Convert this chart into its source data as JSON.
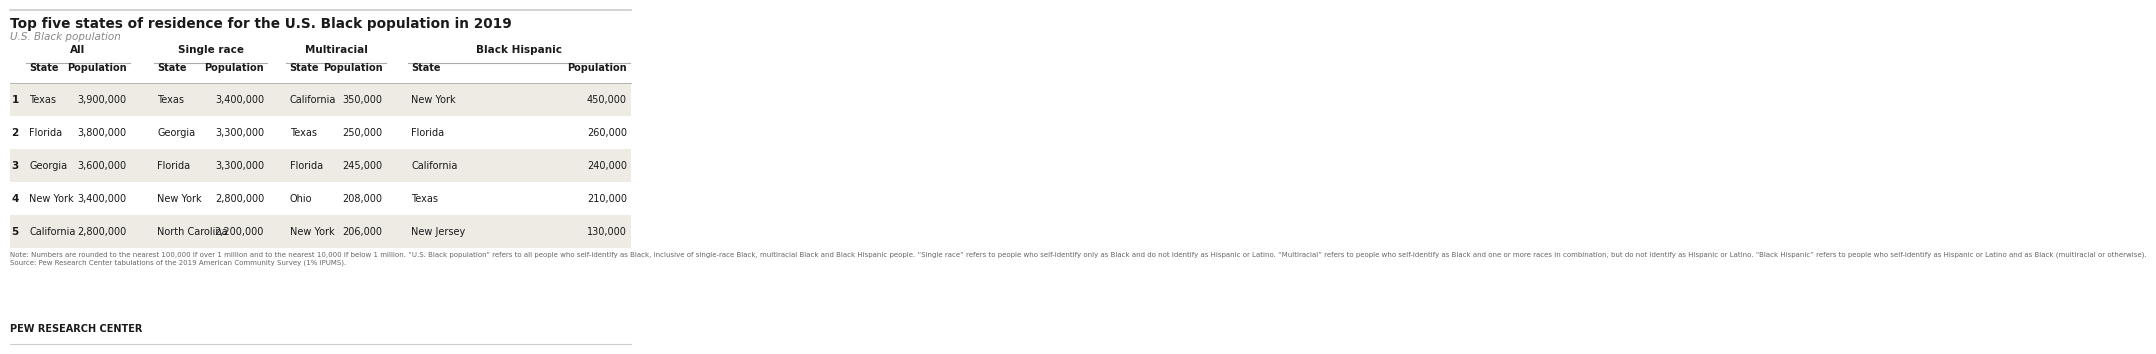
{
  "title": "Top five states of residence for the U.S. Black population in 2019",
  "subtitle": "U.S. Black population",
  "ranks": [
    "1",
    "2",
    "3",
    "4",
    "5"
  ],
  "all_data": [
    [
      "Texas",
      "3,900,000"
    ],
    [
      "Florida",
      "3,800,000"
    ],
    [
      "Georgia",
      "3,600,000"
    ],
    [
      "New York",
      "3,400,000"
    ],
    [
      "California",
      "2,800,000"
    ]
  ],
  "single_race_data": [
    [
      "Texas",
      "3,400,000"
    ],
    [
      "Georgia",
      "3,300,000"
    ],
    [
      "Florida",
      "3,300,000"
    ],
    [
      "New York",
      "2,800,000"
    ],
    [
      "North Carolina",
      "2,200,000"
    ]
  ],
  "multiracial_data": [
    [
      "California",
      "350,000"
    ],
    [
      "Texas",
      "250,000"
    ],
    [
      "Florida",
      "245,000"
    ],
    [
      "Ohio",
      "208,000"
    ],
    [
      "New York",
      "206,000"
    ]
  ],
  "black_hispanic_data": [
    [
      "New York",
      "450,000"
    ],
    [
      "Florida",
      "260,000"
    ],
    [
      "California",
      "240,000"
    ],
    [
      "Texas",
      "210,000"
    ],
    [
      "New Jersey",
      "130,000"
    ]
  ],
  "note": "Note: Numbers are rounded to the nearest 100,000 if over 1 million and to the nearest 10,000 if below 1 million. “U.S. Black population” refers to all people who self-identify as Black, inclusive of single-race Black, multiracial Black and Black Hispanic people. “Single race” refers to people who self-identify only as Black and do not identify as Hispanic or Latino. “Multiracial” refers to people who self-identify as Black and one or more races in combination, but do not identify as Hispanic or Latino. “Black Hispanic” refers to people who self-identify as Hispanic or Latino and as Black (multiracial or otherwise).\nSource: Pew Research Center tabulations of the 2019 American Community Survey (1% IPUMS).",
  "footer": "PEW RESEARCH CENTER",
  "bg_color": "#ffffff",
  "row_alt_color": "#eeebe4",
  "line_color": "#aaaaaa",
  "text_color": "#1a1a1a",
  "note_color": "#666666",
  "subtitle_color": "#888888",
  "top_line_color": "#cccccc",
  "bottom_line_color": "#cccccc"
}
